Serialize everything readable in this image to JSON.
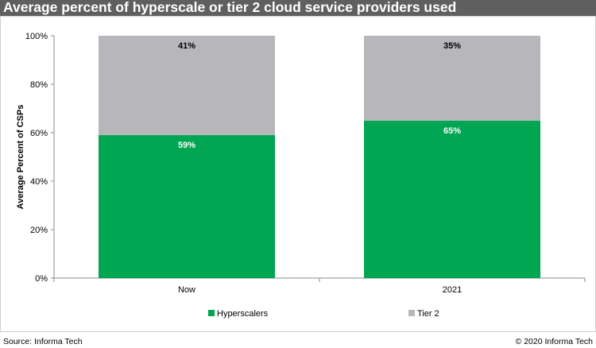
{
  "title": "Average percent of hyperscale or tier 2 cloud service providers used",
  "source": "Source: Informa Tech",
  "copyright": "© 2020 Informa Tech",
  "colors": {
    "title_bar": "#5f5f5f",
    "hyperscalers": "#00a651",
    "tier2": "#b7b7bb"
  },
  "chart_data": {
    "type": "bar",
    "stacked": true,
    "categories": [
      "Now",
      "2021"
    ],
    "series": [
      {
        "name": "Hyperscalers",
        "values": [
          59,
          65
        ],
        "labels": [
          "59%",
          "65%"
        ],
        "color": "#00a651"
      },
      {
        "name": "Tier 2",
        "values": [
          41,
          35
        ],
        "labels": [
          "41%",
          "35%"
        ],
        "color": "#b7b7bb"
      }
    ],
    "ylabel": "Average Percent of CSPs",
    "xlabel": "",
    "ylim": [
      0,
      100
    ],
    "yticks": [
      "0%",
      "20%",
      "40%",
      "60%",
      "80%",
      "100%"
    ],
    "legend": "bottom",
    "grid": false
  }
}
